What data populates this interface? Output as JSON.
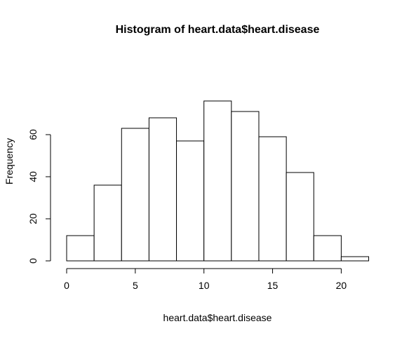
{
  "chart_data": {
    "type": "bar",
    "title": "Histogram of heart.data$heart.disease",
    "xlabel": "heart.data$heart.disease",
    "ylabel": "Frequency",
    "bins": [
      {
        "from": 0,
        "to": 2,
        "value": 12
      },
      {
        "from": 2,
        "to": 4,
        "value": 36
      },
      {
        "from": 4,
        "to": 6,
        "value": 63
      },
      {
        "from": 6,
        "to": 8,
        "value": 68
      },
      {
        "from": 8,
        "to": 10,
        "value": 57
      },
      {
        "from": 10,
        "to": 12,
        "value": 76
      },
      {
        "from": 12,
        "to": 14,
        "value": 71
      },
      {
        "from": 14,
        "to": 16,
        "value": 59
      },
      {
        "from": 16,
        "to": 18,
        "value": 42
      },
      {
        "from": 18,
        "to": 20,
        "value": 12
      },
      {
        "from": 20,
        "to": 22,
        "value": 2
      }
    ],
    "xlim": [
      0,
      22
    ],
    "ylim": [
      0,
      76
    ],
    "x_ticks": [
      0,
      5,
      10,
      15,
      20
    ],
    "y_ticks": [
      0,
      20,
      40,
      60
    ],
    "grid": false,
    "bar_fill": "#ffffff",
    "bar_stroke": "#000000"
  }
}
